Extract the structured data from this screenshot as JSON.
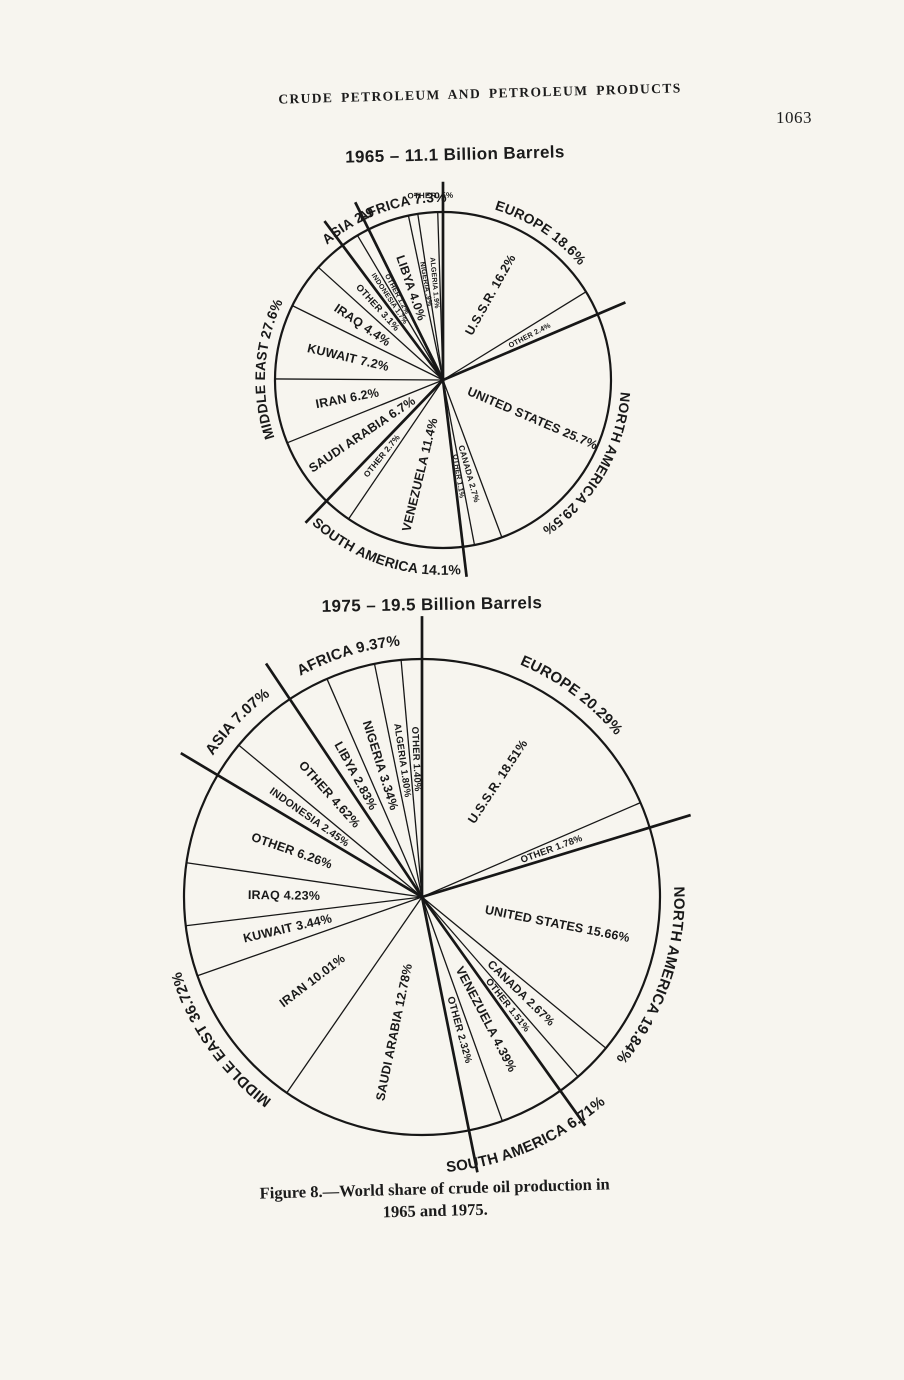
{
  "page": {
    "header": "CRUDE PETROLEUM AND PETROLEUM PRODUCTS",
    "page_number": "1063",
    "caption_line1": "Figure 8.—World share of crude oil production in",
    "caption_line2": "1965 and 1975."
  },
  "chart_data": [
    {
      "type": "pie",
      "title": "1965 – 11.1 Billion Barrels",
      "year": "1965",
      "total_billion_barrels": 11.1,
      "start_angle": "12 o'clock",
      "direction": "clockwise",
      "regions": [
        {
          "name": "EUROPE",
          "label": "EUROPE 18.6%",
          "value": 18.6,
          "slices": [
            {
              "name": "U.S.S.R.",
              "label": "U.S.S.R. 16.2%",
              "value": 16.2
            },
            {
              "name": "OTHER",
              "label": "OTHER 2.4%",
              "value": 2.4
            }
          ]
        },
        {
          "name": "NORTH AMERICA",
          "label": "NORTH AMERICA 29.5%",
          "value": 29.5,
          "slices": [
            {
              "name": "UNITED STATES",
              "label": "UNITED STATES 25.7%",
              "value": 25.7
            },
            {
              "name": "CANADA",
              "label": "CANADA 2.7%",
              "value": 2.7
            },
            {
              "name": "OTHER",
              "label": "OTHER 1.1%",
              "value": 1.1
            }
          ]
        },
        {
          "name": "SOUTH AMERICA",
          "label": "SOUTH AMERICA 14.1%",
          "value": 14.1,
          "slices": [
            {
              "name": "VENEZUELA",
              "label": "VENEZUELA 11.4%",
              "value": 11.4
            },
            {
              "name": "OTHER",
              "label": "OTHER 2.7%",
              "value": 2.7
            }
          ]
        },
        {
          "name": "MIDDLE EAST",
          "label": "MIDDLE EAST 27.6%",
          "value": 27.6,
          "slices": [
            {
              "name": "SAUDI ARABIA",
              "label": "SAUDI ARABIA 6.7%",
              "value": 6.7
            },
            {
              "name": "IRAN",
              "label": "IRAN 6.2%",
              "value": 6.2
            },
            {
              "name": "KUWAIT",
              "label": "KUWAIT 7.2%",
              "value": 7.2
            },
            {
              "name": "IRAQ",
              "label": "IRAQ 4.4%",
              "value": 4.4
            },
            {
              "name": "OTHER",
              "label": "OTHER 3.1%",
              "value": 3.1
            }
          ]
        },
        {
          "name": "ASIA",
          "label": "ASIA 2.9",
          "value": 2.9,
          "slices": [
            {
              "name": "INDONESIA",
              "label": "INDONESIA 1.7%",
              "value": 1.7
            },
            {
              "name": "OTHER",
              "label": "OTHER 1.2%",
              "value": 1.2
            }
          ]
        },
        {
          "name": "AFRICA",
          "label": "AFRICA 7.3%",
          "value": 7.3,
          "slices": [
            {
              "name": "LIBYA",
              "label": "LIBYA 4.0%",
              "value": 4.0
            },
            {
              "name": "NIGERIA",
              "label": "NIGERIA .9%",
              "value": 0.9
            },
            {
              "name": "ALGERIA",
              "label": "ALGERIA 1.9%",
              "value": 1.9
            },
            {
              "name": "OTHER",
              "label": "OTHER .5%",
              "value": 0.5
            }
          ]
        }
      ]
    },
    {
      "type": "pie",
      "title": "1975 – 19.5 Billion Barrels",
      "year": "1975",
      "total_billion_barrels": 19.5,
      "start_angle": "12 o'clock",
      "direction": "clockwise",
      "regions": [
        {
          "name": "EUROPE",
          "label": "EUROPE 20.29%",
          "value": 20.29,
          "slices": [
            {
              "name": "U.S.S.R.",
              "label": "U.S.S.R. 18.51%",
              "value": 18.51
            },
            {
              "name": "OTHER",
              "label": "OTHER 1.78%",
              "value": 1.78
            }
          ]
        },
        {
          "name": "NORTH AMERICA",
          "label": "NORTH AMERICA 19.84%",
          "value": 19.84,
          "slices": [
            {
              "name": "UNITED STATES",
              "label": "UNITED STATES 15.66%",
              "value": 15.66
            },
            {
              "name": "CANADA",
              "label": "CANADA 2.67%",
              "value": 2.67
            },
            {
              "name": "OTHER",
              "label": "OTHER 1.51%",
              "value": 1.51
            }
          ]
        },
        {
          "name": "SOUTH AMERICA",
          "label": "SOUTH AMERICA 6.71%",
          "value": 6.71,
          "slices": [
            {
              "name": "VENEZUELA",
              "label": "VENEZUELA 4.39%",
              "value": 4.39
            },
            {
              "name": "OTHER",
              "label": "OTHER 2.32%",
              "value": 2.32
            }
          ]
        },
        {
          "name": "MIDDLE EAST",
          "label": "MIDDLE EAST 36.72%",
          "value": 36.72,
          "slices": [
            {
              "name": "SAUDI ARABIA",
              "label": "SAUDI ARABIA 12.78%",
              "value": 12.78
            },
            {
              "name": "IRAN",
              "label": "IRAN 10.01%",
              "value": 10.01
            },
            {
              "name": "KUWAIT",
              "label": "KUWAIT 3.44%",
              "value": 3.44
            },
            {
              "name": "IRAQ",
              "label": "IRAQ 4.23%",
              "value": 4.23
            },
            {
              "name": "OTHER",
              "label": "OTHER 6.26%",
              "value": 6.26
            }
          ]
        },
        {
          "name": "ASIA",
          "label": "ASIA 7.07%",
          "value": 7.07,
          "slices": [
            {
              "name": "INDONESIA",
              "label": "INDONESIA 2.45%",
              "value": 2.45
            },
            {
              "name": "OTHER",
              "label": "OTHER 4.62%",
              "value": 4.62
            }
          ]
        },
        {
          "name": "AFRICA",
          "label": "AFRICA 9.37%",
          "value": 9.37,
          "slices": [
            {
              "name": "LIBYA",
              "label": "LIBYA 2.83%",
              "value": 2.83
            },
            {
              "name": "NIGERIA",
              "label": "NIGERIA 3.34%",
              "value": 3.34
            },
            {
              "name": "ALGERIA",
              "label": "ALGERIA 1.80%",
              "value": 1.8
            },
            {
              "name": "OTHER",
              "label": "OTHER 1.40%",
              "value": 1.4
            }
          ]
        }
      ]
    }
  ]
}
